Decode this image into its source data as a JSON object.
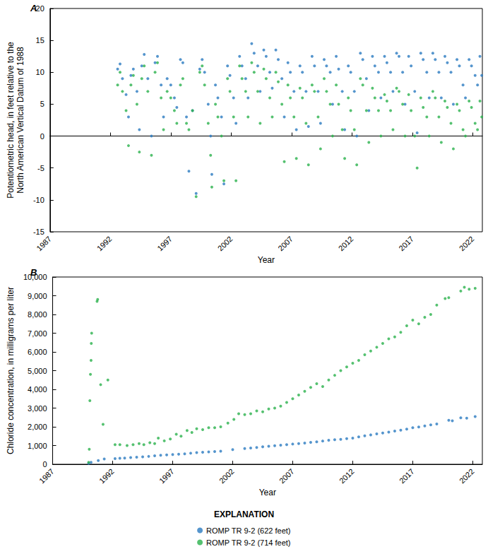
{
  "chart_data": [
    {
      "type": "scatter",
      "title": "A",
      "x_label": "Year",
      "y_label": "Potentiometric head, in feet relative to the\nNorth American Vertical Datum of 1988",
      "xlim": [
        1987,
        2022.8
      ],
      "xticks": [
        1987,
        1992,
        1997,
        2002,
        2007,
        2012,
        2017,
        2022
      ],
      "ylim": [
        -15,
        20
      ],
      "yticks": [
        -15,
        -10,
        -5,
        0,
        5,
        10,
        15,
        20
      ],
      "grid": false,
      "series": [
        {
          "name": "ROMP TR 9-2 (622 feet)",
          "color": "#2a7bc0",
          "marker": "circle",
          "x": [
            1992.6,
            1992.8,
            1993.0,
            1993.3,
            1993.5,
            1993.7,
            1993.9,
            1994.2,
            1994.4,
            1994.6,
            1994.8,
            1995.1,
            1995.4,
            1995.7,
            1995.9,
            1996.2,
            1996.4,
            1996.7,
            1997.0,
            1997.3,
            1997.5,
            1997.8,
            1998.0,
            1998.3,
            1998.5,
            1998.8,
            1999.1,
            1999.4,
            1999.6,
            1999.8,
            2000.1,
            2000.3,
            2000.4,
            2000.7,
            2000.9,
            2001.2,
            2001.4,
            2001.7,
            2001.9,
            2002.2,
            2002.4,
            2002.7,
            2002.9,
            2003.2,
            2003.4,
            2003.7,
            2003.9,
            2004.2,
            2004.4,
            2004.7,
            2004.9,
            2005.2,
            2005.4,
            2005.7,
            2005.9,
            2006.2,
            2006.4,
            2006.7,
            2006.9,
            2007.2,
            2007.4,
            2007.7,
            2007.9,
            2008.2,
            2008.4,
            2008.7,
            2008.9,
            2009.2,
            2009.4,
            2009.7,
            2009.9,
            2010.2,
            2010.4,
            2010.7,
            2010.9,
            2011.2,
            2011.4,
            2011.7,
            2011.9,
            2012.2,
            2012.4,
            2012.7,
            2012.9,
            2013.2,
            2013.4,
            2013.7,
            2013.9,
            2014.2,
            2014.4,
            2014.7,
            2014.9,
            2015.2,
            2015.4,
            2015.7,
            2015.9,
            2016.2,
            2016.4,
            2016.7,
            2016.9,
            2017.2,
            2017.4,
            2017.7,
            2017.9,
            2018.2,
            2018.4,
            2018.7,
            2018.9,
            2019.2,
            2019.4,
            2019.7,
            2019.9,
            2020.2,
            2020.4,
            2020.7,
            2020.9,
            2021.2,
            2021.4,
            2021.7,
            2021.9,
            2022.2,
            2022.4,
            2022.6,
            2022.75
          ],
          "values": [
            10.5,
            11.3,
            9.0,
            6.5,
            3.0,
            9.5,
            10.5,
            7,
            1,
            11,
            12.8,
            9,
            0,
            11.5,
            12.5,
            8,
            3,
            9,
            8,
            6,
            4.5,
            12,
            11.5,
            3,
            -5.5,
            4,
            -9,
            10.5,
            12,
            10,
            5,
            0,
            -6,
            8,
            6,
            3,
            -7.5,
            11,
            9.5,
            6,
            2,
            12.5,
            11,
            9,
            6,
            14.5,
            13,
            11,
            7,
            13.5,
            12.5,
            10,
            7.5,
            13.5,
            12,
            9,
            3,
            11.5,
            10,
            7,
            1,
            11,
            10,
            7,
            1.5,
            12.5,
            11,
            7,
            2,
            12,
            11,
            10,
            5,
            12.5,
            10.5,
            7,
            1,
            11,
            10,
            7,
            0,
            13,
            12,
            9,
            4,
            12.5,
            11,
            10,
            6,
            12.5,
            11.5,
            10,
            7,
            13,
            12.5,
            10,
            5,
            12.5,
            11,
            7,
            0.5,
            13,
            12,
            10,
            6,
            13,
            12,
            10,
            6,
            12.5,
            11.5,
            10,
            5,
            12,
            11,
            8,
            6,
            12,
            11,
            9.5,
            8,
            12.5,
            9.5
          ]
        },
        {
          "name": "ROMP TR 9-2 (714 feet)",
          "color": "#2bb24c",
          "marker": "circle",
          "x": [
            1992.6,
            1992.8,
            1993.0,
            1993.3,
            1993.5,
            1993.7,
            1993.9,
            1994.2,
            1994.4,
            1994.6,
            1994.8,
            1995.1,
            1995.4,
            1995.7,
            1995.9,
            1996.2,
            1996.4,
            1996.7,
            1997.0,
            1997.3,
            1997.5,
            1997.8,
            1998.0,
            1998.3,
            1998.5,
            1998.8,
            1999.1,
            1999.4,
            1999.6,
            1999.8,
            2000.1,
            2000.3,
            2000.4,
            2000.7,
            2000.9,
            2001.2,
            2001.4,
            2001.7,
            2001.9,
            2002.2,
            2002.4,
            2002.7,
            2002.9,
            2003.2,
            2003.4,
            2003.7,
            2003.9,
            2004.2,
            2004.4,
            2004.7,
            2004.9,
            2005.2,
            2005.4,
            2005.7,
            2005.9,
            2006.2,
            2006.4,
            2006.7,
            2006.9,
            2007.2,
            2007.4,
            2007.7,
            2007.9,
            2008.2,
            2008.4,
            2008.7,
            2008.9,
            2009.2,
            2009.4,
            2009.7,
            2009.9,
            2010.2,
            2010.4,
            2010.7,
            2010.9,
            2011.2,
            2011.4,
            2011.7,
            2011.9,
            2012.2,
            2012.4,
            2012.7,
            2012.9,
            2013.2,
            2013.4,
            2013.7,
            2013.9,
            2014.2,
            2014.4,
            2014.7,
            2014.9,
            2015.2,
            2015.4,
            2015.7,
            2015.9,
            2016.2,
            2016.4,
            2016.7,
            2016.9,
            2017.2,
            2017.4,
            2017.7,
            2017.9,
            2018.2,
            2018.4,
            2018.7,
            2018.9,
            2019.2,
            2019.4,
            2019.7,
            2019.9,
            2020.2,
            2020.4,
            2020.7,
            2020.9,
            2021.2,
            2021.4,
            2021.7,
            2021.9,
            2022.2,
            2022.4,
            2022.6,
            2022.75
          ],
          "values": [
            8,
            10,
            7,
            4,
            -1.5,
            8,
            9.5,
            5,
            -2.5,
            9,
            11,
            7,
            -3,
            10,
            11.5,
            6,
            1,
            7,
            6,
            4,
            2,
            8,
            9,
            2,
            1,
            4,
            -9.5,
            10,
            11,
            8,
            2,
            -3,
            -8,
            5,
            3,
            0,
            -7,
            9,
            7,
            3,
            -7,
            11,
            9,
            7,
            3,
            11.5,
            10,
            7,
            2,
            10.5,
            9,
            6,
            3,
            10,
            8.5,
            5,
            -4,
            8,
            6,
            3,
            -3.5,
            7.5,
            6,
            2,
            -4.5,
            8,
            7,
            3,
            -2,
            9,
            7,
            5,
            0,
            8,
            5,
            1,
            -3.5,
            6,
            4,
            1,
            -4.5,
            9,
            8,
            4,
            -1,
            7.5,
            6,
            4,
            0,
            6.5,
            5.5,
            4,
            1,
            7.5,
            7,
            5,
            0,
            6.5,
            4,
            0,
            -5,
            6,
            4.5,
            3,
            0,
            7,
            6,
            3,
            -1,
            5.5,
            4.5,
            2,
            -2,
            5,
            4,
            1,
            0,
            5.5,
            4.5,
            2,
            1,
            5.5,
            3
          ]
        }
      ]
    },
    {
      "type": "scatter",
      "title": "B",
      "x_label": "Year",
      "y_label": "Chloride concentration, in milligrams per liter",
      "xlim": [
        1987,
        2022.8
      ],
      "xticks": [
        1987,
        1992,
        1997,
        2002,
        2007,
        2012,
        2017,
        2022
      ],
      "ylim": [
        0,
        10000
      ],
      "yticks": [
        0,
        {
          "value": 1000,
          "label": "1,000"
        },
        {
          "value": 2000,
          "label": "2,000"
        },
        {
          "value": 3000,
          "label": "3,000"
        },
        {
          "value": 4000,
          "label": "4,000"
        },
        {
          "value": 5000,
          "label": "5,000"
        },
        {
          "value": 6000,
          "label": "6,000"
        },
        {
          "value": 7000,
          "label": "7,000"
        },
        {
          "value": 8000,
          "label": "8,000"
        },
        {
          "value": 9000,
          "label": "9,000"
        },
        {
          "value": 10000,
          "label": "10,000"
        }
      ],
      "grid": false,
      "series": [
        {
          "name": "ROMP TR 9-2 (622 feet)",
          "color": "#2a7bc0",
          "marker": "circle",
          "x": [
            1990.0,
            1990.2,
            1990.8,
            1991.3,
            1992.2,
            1992.6,
            1993.0,
            1993.5,
            1994.0,
            1994.5,
            1995.0,
            1995.5,
            1996.0,
            1996.5,
            1997.0,
            1997.5,
            1998.0,
            1998.5,
            1999.0,
            1999.5,
            2000.0,
            2000.5,
            2001.0,
            2002.0,
            2003.0,
            2003.5,
            2004.0,
            2004.5,
            2005.0,
            2005.5,
            2006.0,
            2006.5,
            2007.0,
            2007.5,
            2008.0,
            2008.5,
            2009.0,
            2009.5,
            2010.0,
            2010.5,
            2011.0,
            2011.5,
            2012.0,
            2012.5,
            2013.0,
            2013.5,
            2014.0,
            2014.5,
            2015.0,
            2015.5,
            2016.0,
            2016.5,
            2017.0,
            2017.5,
            2018.0,
            2018.5,
            2019.0,
            2020.0,
            2020.3,
            2021.0,
            2021.5,
            2022.2
          ],
          "values": [
            50,
            100,
            200,
            280,
            300,
            320,
            330,
            360,
            380,
            400,
            420,
            450,
            480,
            500,
            520,
            540,
            560,
            590,
            620,
            640,
            660,
            680,
            700,
            780,
            840,
            870,
            900,
            930,
            960,
            990,
            1020,
            1050,
            1080,
            1100,
            1130,
            1170,
            1200,
            1240,
            1280,
            1310,
            1330,
            1370,
            1400,
            1460,
            1520,
            1570,
            1620,
            1670,
            1720,
            1770,
            1820,
            1880,
            1950,
            1990,
            2050,
            2100,
            2150,
            2350,
            2320,
            2480,
            2460,
            2550
          ]
        },
        {
          "name": "ROMP TR 9-2 (714 feet)",
          "color": "#2bb24c",
          "marker": "circle",
          "x": [
            1990.0,
            1990.05,
            1990.1,
            1990.15,
            1990.2,
            1990.22,
            1990.25,
            1990.7,
            1990.75,
            1991.0,
            1991.2,
            1991.6,
            1992.2,
            1992.6,
            1993.2,
            1993.7,
            1994.2,
            1994.6,
            1995.1,
            1995.5,
            1995.8,
            1996.3,
            1996.8,
            1997.3,
            1997.7,
            1998.2,
            1998.6,
            1999.0,
            1999.5,
            2000.0,
            2000.5,
            2001.0,
            2001.6,
            2002.1,
            2002.5,
            2003.0,
            2003.5,
            2004.0,
            2004.5,
            2005.0,
            2005.5,
            2006.0,
            2006.5,
            2007.0,
            2007.5,
            2008.0,
            2008.5,
            2009.0,
            2009.5,
            2010.0,
            2010.5,
            2011.0,
            2011.5,
            2012.0,
            2012.5,
            2013.0,
            2013.5,
            2014.0,
            2014.5,
            2015.0,
            2015.5,
            2016.0,
            2016.5,
            2017.0,
            2017.5,
            2018.0,
            2018.5,
            2019.0,
            2019.7,
            2020.0,
            2021.0,
            2021.3,
            2021.7,
            2022.2
          ],
          "values": [
            100,
            800,
            3400,
            4800,
            5550,
            6450,
            7000,
            8700,
            8800,
            4250,
            2130,
            4500,
            1050,
            1050,
            1000,
            1050,
            1100,
            1050,
            1150,
            1100,
            1400,
            1250,
            1350,
            1600,
            1500,
            1800,
            1700,
            1900,
            1850,
            1950,
            1950,
            2000,
            2200,
            2400,
            2700,
            2650,
            2700,
            2850,
            2800,
            2950,
            3000,
            3100,
            3300,
            3500,
            3700,
            3900,
            4100,
            4300,
            4150,
            4500,
            4750,
            5000,
            5200,
            5400,
            5550,
            5850,
            6050,
            6250,
            6450,
            6700,
            6800,
            7050,
            7400,
            7700,
            7500,
            7850,
            8000,
            8500,
            8850,
            8900,
            9250,
            9450,
            9350,
            9400
          ]
        }
      ]
    }
  ],
  "legend_title": "EXPLANATION"
}
